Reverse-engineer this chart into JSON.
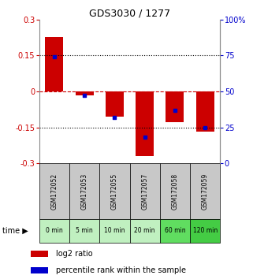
{
  "title": "GDS3030 / 1277",
  "samples": [
    "GSM172052",
    "GSM172053",
    "GSM172055",
    "GSM172057",
    "GSM172058",
    "GSM172059"
  ],
  "time_labels": [
    "0 min",
    "5 min",
    "10 min",
    "20 min",
    "60 min",
    "120 min"
  ],
  "log2_ratio": [
    0.228,
    -0.018,
    -0.105,
    -0.27,
    -0.128,
    -0.168
  ],
  "percentile_rank": [
    74,
    47,
    32,
    18,
    37,
    25
  ],
  "ylim_left": [
    -0.3,
    0.3
  ],
  "ylim_right": [
    0,
    100
  ],
  "yticks_left": [
    -0.3,
    -0.15,
    0,
    0.15,
    0.3
  ],
  "yticks_right": [
    0,
    25,
    50,
    75,
    100
  ],
  "ytick_labels_left": [
    "-0.3",
    "-0.15",
    "0",
    "0.15",
    "0.3"
  ],
  "ytick_labels_right": [
    "0",
    "25",
    "50",
    "75",
    "100%"
  ],
  "bar_color_red": "#cc0000",
  "bar_color_blue": "#0000cc",
  "zero_line_color": "#cc0000",
  "grid_color": "#000000",
  "sample_bg_color": "#c8c8c8",
  "time_bg_color_light": "#b8f0b8",
  "time_bg_color_dark": "#50dd50",
  "title_color": "#000000",
  "left_tick_color": "#cc0000",
  "right_tick_color": "#0000cc",
  "bar_width": 0.6,
  "time_bg_colors": [
    "#c0f0c0",
    "#c0f0c0",
    "#c0f0c0",
    "#c0f0c0",
    "#60dd60",
    "#44cc44"
  ]
}
